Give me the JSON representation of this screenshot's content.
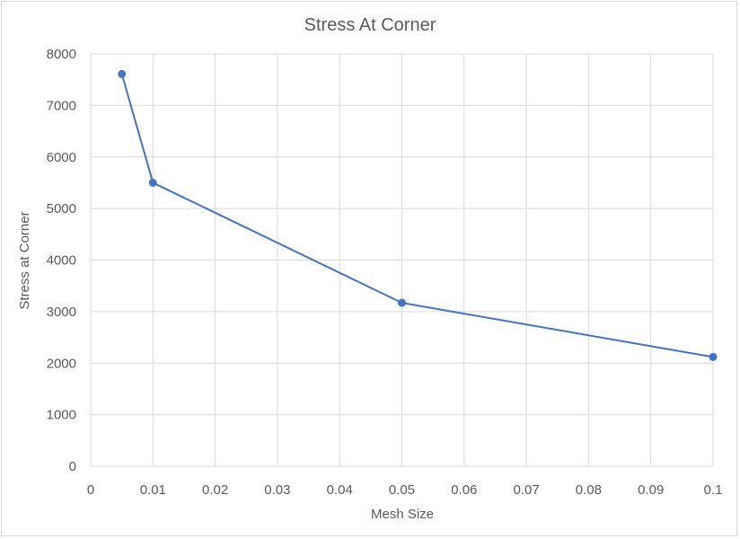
{
  "chart_data": {
    "type": "scatter",
    "title": "Stress At Corner",
    "xlabel": "Mesh Size",
    "ylabel": "Stress at Corner",
    "xlim": [
      0,
      0.1
    ],
    "ylim": [
      0,
      8000
    ],
    "xticks": [
      "0",
      "0.01",
      "0.02",
      "0.03",
      "0.04",
      "0.05",
      "0.06",
      "0.07",
      "0.08",
      "0.09",
      "0.1"
    ],
    "yticks": [
      "0",
      "1000",
      "2000",
      "3000",
      "4000",
      "5000",
      "6000",
      "7000",
      "8000"
    ],
    "grid": true,
    "legend": "none",
    "line_color": "#4472C4",
    "series": [
      {
        "x": [
          0.005,
          0.01,
          0.05,
          0.1
        ],
        "y": [
          7610,
          5500,
          3170,
          2120
        ]
      }
    ]
  }
}
